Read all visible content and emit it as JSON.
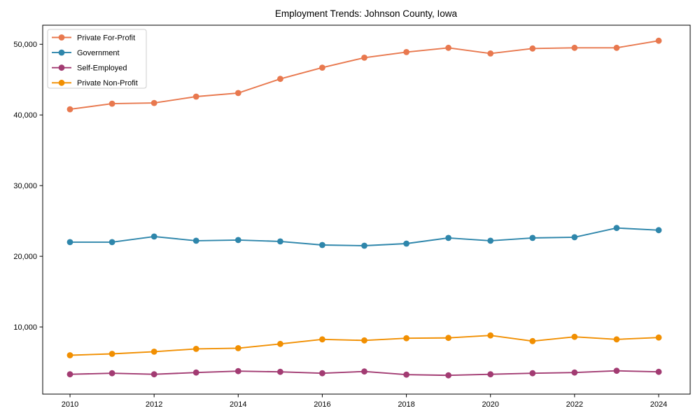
{
  "colors": {
    "background": "#ffffff",
    "spine": "#000000",
    "text": "#000000",
    "legend_border": "#cccccc",
    "legend_background": "#ffffff"
  },
  "chart_data": {
    "type": "line",
    "title": "Employment Trends: Johnson County, Iowa",
    "xlabel": "",
    "ylabel": "",
    "grid": false,
    "x": [
      2010,
      2011,
      2012,
      2013,
      2014,
      2015,
      2016,
      2017,
      2018,
      2019,
      2020,
      2021,
      2022,
      2023,
      2024
    ],
    "series": [
      {
        "name": "Private For-Profit",
        "color": "#e8784e",
        "marker": "circle",
        "values": [
          40800,
          41600,
          41700,
          42600,
          43100,
          45100,
          46700,
          48100,
          48900,
          49500,
          48700,
          49400,
          49500,
          49500,
          50500
        ]
      },
      {
        "name": "Government",
        "color": "#2e86ab",
        "marker": "circle",
        "values": [
          22000,
          22000,
          22800,
          22200,
          22300,
          22100,
          21600,
          21500,
          21800,
          22600,
          22200,
          22600,
          22700,
          24000,
          23700
        ]
      },
      {
        "name": "Self-Employed",
        "color": "#a23b72",
        "marker": "circle",
        "values": [
          3300,
          3450,
          3300,
          3550,
          3750,
          3650,
          3450,
          3700,
          3250,
          3150,
          3300,
          3450,
          3550,
          3800,
          3650
        ]
      },
      {
        "name": "Private Non-Profit",
        "color": "#f18f01",
        "marker": "circle",
        "values": [
          6000,
          6200,
          6500,
          6900,
          7000,
          7600,
          8250,
          8100,
          8400,
          8450,
          8800,
          8000,
          8600,
          8250,
          8500
        ]
      }
    ],
    "xlim": [
      2009.35,
      2024.75
    ],
    "ylim": [
      500,
      52700
    ],
    "xticks": {
      "values": [
        2010,
        2012,
        2014,
        2016,
        2018,
        2020,
        2022,
        2024
      ],
      "labels": [
        "2010",
        "2012",
        "2014",
        "2016",
        "2018",
        "2020",
        "2022",
        "2024"
      ]
    },
    "yticks": {
      "values": [
        10000,
        20000,
        30000,
        40000,
        50000
      ],
      "labels": [
        "10,000",
        "20,000",
        "30,000",
        "40,000",
        "50,000"
      ]
    },
    "legend": {
      "position": "upper-left",
      "entries": [
        "Private For-Profit",
        "Government",
        "Self-Employed",
        "Private Non-Profit"
      ]
    }
  }
}
